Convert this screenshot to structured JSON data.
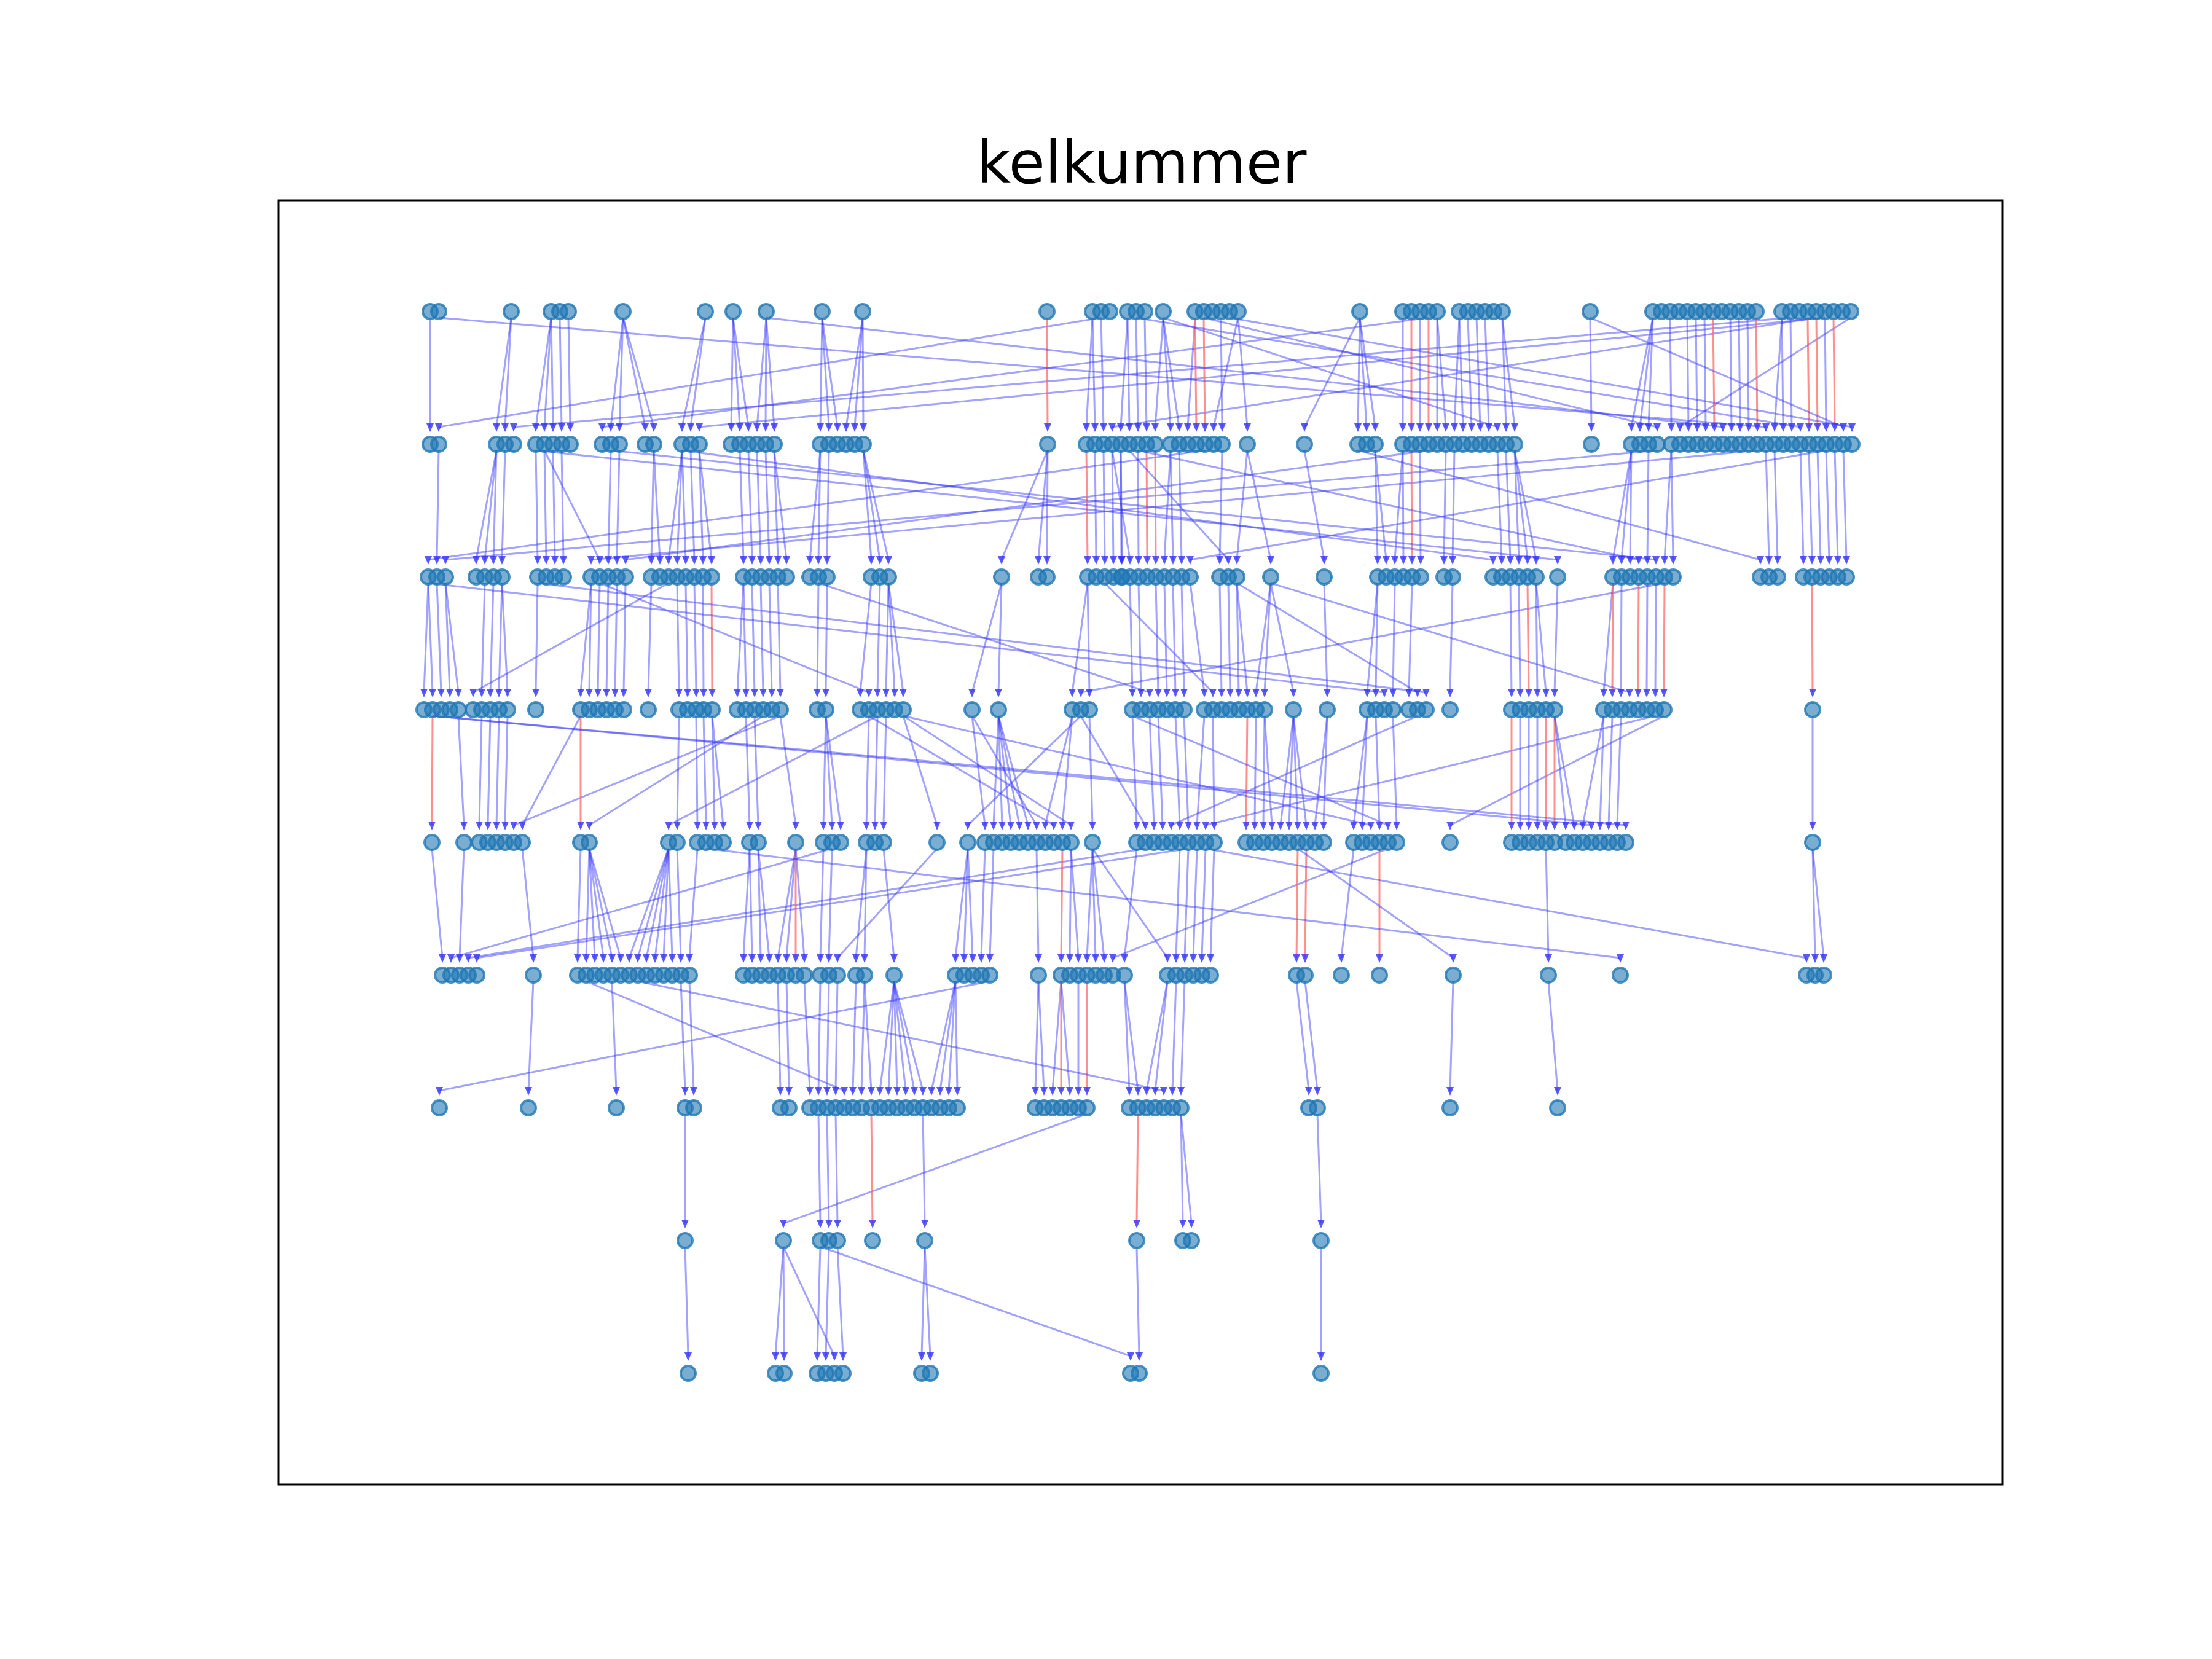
{
  "title": "kelkummer",
  "colors": {
    "background": "#ffffff",
    "frame": "#000000",
    "node_fill": "#1f77b4",
    "node_opacity": 0.6,
    "edge_tree": "#3030ff",
    "edge_cross": "#ff6060"
  },
  "graph": {
    "type": "layered-directed-graph",
    "layers": 9,
    "nodes_per_layer": [
      70,
      92,
      76,
      80,
      78,
      70,
      48,
      16,
      12
    ],
    "axes_visible": false
  }
}
